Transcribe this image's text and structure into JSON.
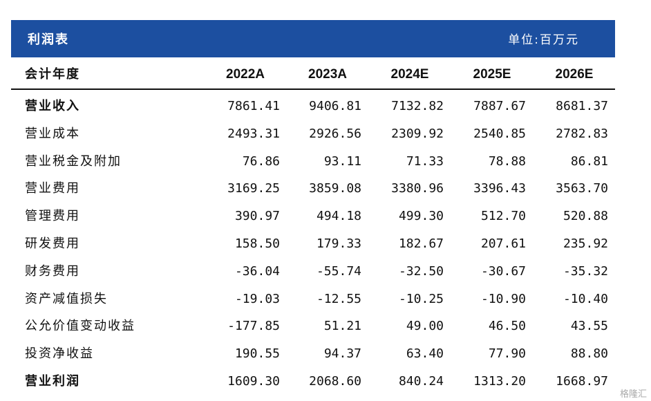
{
  "header": {
    "title": "利润表",
    "unit": "单位:百万元"
  },
  "columns": {
    "label": "会计年度",
    "years": [
      "2022A",
      "2023A",
      "2024E",
      "2025E",
      "2026E"
    ]
  },
  "rows": [
    {
      "label": "营业收入",
      "values": [
        "7861.41",
        "9406.81",
        "7132.82",
        "7887.67",
        "8681.37"
      ],
      "bold": true
    },
    {
      "label": "营业成本",
      "values": [
        "2493.31",
        "2926.56",
        "2309.92",
        "2540.85",
        "2782.83"
      ],
      "bold": false
    },
    {
      "label": "营业税金及附加",
      "values": [
        "76.86",
        "93.11",
        "71.33",
        "78.88",
        "86.81"
      ],
      "bold": false
    },
    {
      "label": "营业费用",
      "values": [
        "3169.25",
        "3859.08",
        "3380.96",
        "3396.43",
        "3563.70"
      ],
      "bold": false
    },
    {
      "label": "管理费用",
      "values": [
        "390.97",
        "494.18",
        "499.30",
        "512.70",
        "520.88"
      ],
      "bold": false
    },
    {
      "label": "研发费用",
      "values": [
        "158.50",
        "179.33",
        "182.67",
        "207.61",
        "235.92"
      ],
      "bold": false
    },
    {
      "label": "财务费用",
      "values": [
        "-36.04",
        "-55.74",
        "-32.50",
        "-30.67",
        "-35.32"
      ],
      "bold": false
    },
    {
      "label": "资产减值损失",
      "values": [
        "-19.03",
        "-12.55",
        "-10.25",
        "-10.90",
        "-10.40"
      ],
      "bold": false
    },
    {
      "label": "公允价值变动收益",
      "values": [
        "-177.85",
        "51.21",
        "49.00",
        "46.50",
        "43.55"
      ],
      "bold": false
    },
    {
      "label": "投资净收益",
      "values": [
        "190.55",
        "94.37",
        "63.40",
        "77.90",
        "88.80"
      ],
      "bold": false
    },
    {
      "label": "营业利润",
      "values": [
        "1609.30",
        "2068.60",
        "840.24",
        "1313.20",
        "1668.97"
      ],
      "bold": true
    }
  ],
  "watermark": "格隆汇"
}
